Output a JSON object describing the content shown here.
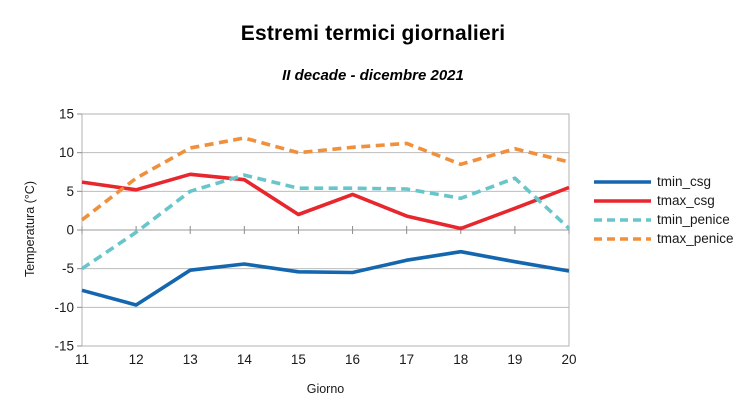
{
  "title": "Estremi termici giornalieri",
  "subtitle": "II decade - dicembre 2021",
  "chart_data": {
    "type": "line",
    "x": [
      11,
      12,
      13,
      14,
      15,
      16,
      17,
      18,
      19,
      20
    ],
    "xlabel": "Giorno",
    "ylabel": "Temperatura (°C)",
    "ylim": [
      -15,
      15
    ],
    "ytick_step": 5,
    "grid": true,
    "legend_position": "right",
    "series": [
      {
        "name": "tmin_csg",
        "color": "#1467af",
        "style": "solid",
        "values": [
          -7.8,
          -9.7,
          -5.2,
          -4.4,
          -5.4,
          -5.5,
          -3.9,
          -2.8,
          -4.1,
          -5.3
        ]
      },
      {
        "name": "tmax_csg",
        "color": "#e8262d",
        "style": "solid",
        "values": [
          6.2,
          5.2,
          7.2,
          6.5,
          2.0,
          4.6,
          1.8,
          0.2,
          2.8,
          5.5
        ]
      },
      {
        "name": "tmin_penice",
        "color": "#68c6cb",
        "style": "dashed",
        "values": [
          -5.0,
          -0.3,
          5.0,
          7.1,
          5.4,
          5.4,
          5.3,
          4.1,
          6.7,
          0.2
        ]
      },
      {
        "name": "tmax_penice",
        "color": "#f0903c",
        "style": "dashed",
        "values": [
          1.3,
          6.7,
          10.6,
          11.9,
          10.0,
          10.7,
          11.2,
          8.5,
          10.5,
          8.8
        ]
      }
    ]
  },
  "colors": {
    "grid": "#bdbdbd",
    "border": "#b3b3b3",
    "tick": "#8c8c8c",
    "zero_axis": "#9a9a9a",
    "text": "#1a1a1a"
  }
}
